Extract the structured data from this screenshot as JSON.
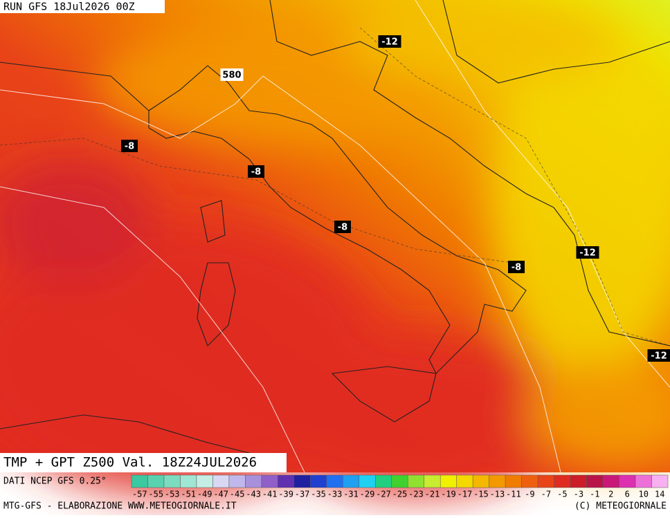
{
  "header": {
    "run": "RUN GFS 18Jul2026 00Z"
  },
  "map": {
    "title": "TMP + GPT Z500 Val. 18Z24JUL2026",
    "contour_labels": [
      {
        "text": "-12"
      },
      {
        "text": "580"
      },
      {
        "text": "-8"
      },
      {
        "text": "-8"
      },
      {
        "text": "-8"
      },
      {
        "text": "-8"
      },
      {
        "text": "-12"
      },
      {
        "text": "-12"
      }
    ]
  },
  "colorbar": {
    "source": "DATI NCEP GFS 0.25°",
    "labels": [
      "-57",
      "-55",
      "-53",
      "-51",
      "-49",
      "-47",
      "-45",
      "-43",
      "-41",
      "-39",
      "-37",
      "-35",
      "-33",
      "-31",
      "-29",
      "-27",
      "-25",
      "-23",
      "-21",
      "-19",
      "-17",
      "-15",
      "-13",
      "-11",
      "-9",
      "-7",
      "-5",
      "-3",
      "-1",
      "2",
      "6",
      "10",
      "14"
    ],
    "colors": [
      "#3cc8a0",
      "#5ad2b0",
      "#7cdcc0",
      "#a0e6d4",
      "#c4eee4",
      "#d8d8f4",
      "#c0b8ec",
      "#a890dc",
      "#9060c8",
      "#6030b0",
      "#2020a0",
      "#2040d0",
      "#2070f0",
      "#20a0f0",
      "#20d0f0",
      "#20d080",
      "#40d030",
      "#90e030",
      "#c8ec30",
      "#f0f000",
      "#f4d800",
      "#f4b800",
      "#f49800",
      "#f07c00",
      "#ee6010",
      "#e84418",
      "#e02c20",
      "#cc1c28",
      "#b81448",
      "#c81878",
      "#dc30b0",
      "#ec70d8",
      "#f8b0f0"
    ]
  },
  "footer": {
    "left": "MTG-GFS - ELABORAZIONE WWW.METEOGIORNALE.IT",
    "right": "(C) METEOGIORNALE"
  }
}
